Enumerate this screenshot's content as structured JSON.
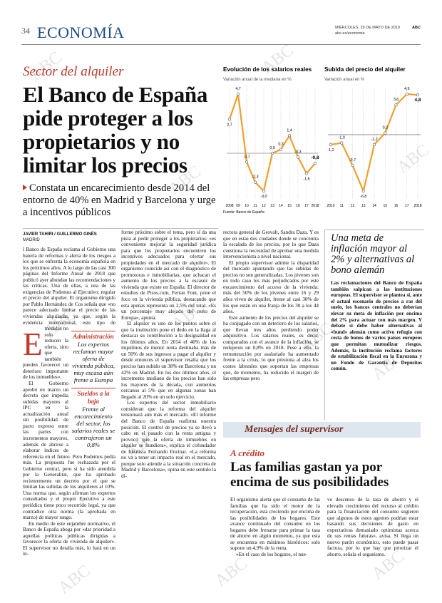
{
  "header": {
    "page_number": "34",
    "section": "ECONOMÍA",
    "date": "MIÉRCOLES, 29 DE MAYO DE 2019",
    "brand": "ABC",
    "url": "abc.es/economia"
  },
  "watermark": "ABC",
  "article": {
    "kicker": "Sector del alquiler",
    "headline": "El Banco de España pide proteger a los propietarios y no limitar los precios",
    "subhead": "Constata un encarecimiento desde 2014 del entorno de 40% en Madrid y Barcelona y urge a incentivos públicos",
    "byline": "JAVIER TAHIRI / GUILLERMO GINÉS",
    "location": "MADRID",
    "drop_cap": "E",
    "columns": [
      [
        "l Banco de España reclama al Gobierno una batería de reformas y alerta de los riesgos a los que se enfrenta la economía española en los próximos años. A lo largo de las casi 300 páginas del Informe Anual de 2018 que publicó ayer abundan las recomendaciones y las críticas. Una de ellas, a una de las exigencias de Podemos al Ejecutivo: regular el precio del alquiler. El organismo dirigido por Pablo Hernández de Cos señala que «no parece adecuado limitar el precio de las viviendas alquiladas, ya que, según la evidencia internacional, este tipo de medidas no solo reducen la oferta, sino que también pueden favorecer un deterioro importante de los inmuebles».",
        "El Gobierno aprobó en marzo un decreto que impedía subidas mayores al IPC en la actualización anual sin posibilidad de pacto expreso entre las partes con incrementos mayores, además de abrirse a elaborar índices de referencia en el futuro. Pero Podemos pedía más. La propuesta fue rechazada por el Gobierno central, pero sí ha sido atendida por la Generalitat, que ha aprobado recientemente un decreto por el que se limitan las subidas de los alquileres al 10%. Una norma que, según afirman los expertos consultados y el propio Ejecutivo a este periódico tiene poco recorrido legal, ya que contradice otra norma (la aprobada en marzo) de mayor rango.",
        "En medio de este enjambre normativo, el Banco de España aboga por «dar prioridad a aquellas políticas públicas dirigidas a favorecer la oferta de vivienda de alquiler». El supervisor no detalla más, lo hará en un in-"
      ],
      [
        "forme próximo sobre el tema, pero sí da una pista al pedir proteger a los propietarios: «es conveniente mejorar la seguridad jurídica para que los propietarios encuentren los incentivos adecuados para ofertar sus propiedades en el mercado de alquiler». El organismo coincide así con el diagnóstico de promotoras e inmobiliarias, que achacan el aumento de los precios a la escasez de vivienda que existe en España. El director de estudios de Pisos.com, Ferran Font, pone el foco en la vivienda pública, destacando que esta apenas representa un 2,5% del total. «Es un porcentaje muy alejado del resto de Europa», apunta.",
        "El alquiler es uno de los puntos sobre el que la institución pone el dedo en la llaga al destacar su contribución a la desigualdad en los últimos años. En 2014 el 40% de los inquilinos de menor renta destinaba más de un 50% de sus ingresos a pagar el alquiler y desde entonces el supervisor resalta que los precios han subido un 38% en Barcelona y un 42% en Madrid. En los dos últimos años, el incremento mediano de los precios han sido los mayores de la década, con aumentos cercanos al 5% que en algunas zonas han llegado al 20% en un solo ejercicio.",
        "Los expertos del sector inmobiliario consideran que la reforma del alquiler tensionará aún más el mercado. «El informe del Banco de España reafirma nuestra posición. El control de precios ya se llevó a cabo en el pasado con la renta antigua y provocó que la oferta de inmuebles en alquiler se hundiera», explica el cofundador de Idealista Fernando Encinar. «La reforma no va a tener un impacto real en el mercado, porque solo atiende a la situación concreta de Madrid y Barcelona», opina en este sentido la di-"
      ],
      [
        "rectora general de Gesvalt, Sandra Daza. Y es que en estas dos ciudades donde se concentra la escalada de los precios, por lo que Daza cuestiona la necesidad de aprobar una medida intervencionista a nivel nacional.",
        "El propio supervisor admite la disparidad del mercado apuntando que las subidas de precios no son generalizadas. Los jóvenes son en todo caso los más perjudicados por este encarecimiento del acceso de la vivienda: más del 50% de los jóvenes entre 16 y 29 años viven de alquiler, frente al casi 30% de los que están en una franja de los 30 a los 44 años.",
        "Este aumento de los precios del alquiler se ha conjugado con un deterioro de los salarios, que llevan tres años perdiendo poder adquisitivo. Los salarios reales, es decir, comparados con el avance de la inflación, se redujeron un 0,8% en 2018. Pese a ello, la remuneración por asalariado ha aumentado frente a la crisis, lo que presiona al alza los costes laborales que soportan las empresas que, de momento, ha reducido el margen de las empresas pero"
      ]
    ],
    "pull_quotes": [
      {
        "label": "Administración",
        "text": "Los expertos reclaman mayor oferta de vivienda pública, muy escasa aún frente a Europa"
      },
      {
        "label": "Sueldos a la baja",
        "text": "Frente al encarecimiento del sector, los salarios reales se contrajeron un 0,8%"
      }
    ]
  },
  "chart_data": [
    {
      "type": "line",
      "title": "Evolución de los salarios reales",
      "subtitle": "Variación anual de la mediana en %",
      "categories": [
        "2008",
        "09",
        "10",
        "11",
        "12",
        "13",
        "14",
        "15",
        "16",
        "17",
        "2018"
      ],
      "values": [
        2.7,
        4.7,
        -0.7,
        -2.3,
        -3.0,
        0.0,
        0.3,
        1.4,
        -0.3,
        -1.6,
        -0.8
      ],
      "value_labels": [
        "2,7",
        "4,7",
        "-0,7",
        "-2,3",
        "-3,0",
        "0,0",
        "0,3",
        "1,4",
        "-0,3",
        "-1,6",
        "-0,8"
      ],
      "color": "#f0a02a"
    },
    {
      "type": "line",
      "title": "Subida del precio del alquiler",
      "subtitle": "Variación anual en %",
      "categories": [
        "2010",
        "11",
        "12",
        "13",
        "14",
        "15",
        "16",
        "17",
        "2018"
      ],
      "values": [
        -1.2,
        -1.0,
        -3.7,
        -6.8,
        -1.2,
        0.2,
        3.6,
        4.9,
        4.8
      ],
      "value_labels": [
        "-1,2",
        "-1,0",
        "-3,7",
        "-6,8",
        "-1,2",
        "0,2",
        "3,6",
        "4,9",
        "4,8"
      ],
      "color": "#f0a02a"
    }
  ],
  "chart_source": "Fuente: Banco de España",
  "sidebar": {
    "headline": "Una meta de inflación mayor al 2% y alternativas al bono alemán",
    "text": "Las reclamaciones del Banco de España también salpican a las instituciones europeas. El supervisor se plantea si, ante el actual escenario de precios a ras del suelo, los bancos centrales no deberían elevar su meta de inflación por encima del 2% para actuar con más margen. Y debate si debe haber alternativas al «bund» alemán como activo refugio con cesta de bonos de varios países europeos que permitan mutualizar riesgos. Además, la institución reclama factores de estabilización fiscal en la Eurozona y un Fondo de Garantía de Depósitos común."
  },
  "credit_article": {
    "banner": "Mensajes del supervisor",
    "kicker": "A crédito",
    "headline": "Las familias gastan ya por encima de sus posibilidades",
    "columns": [
      [
        "El organismo alerta que el consumo de las familias que ha sido el motor de la recuperación, está creciendo por encima de las posibilidades de los hogares. Este avance continuado del consumo en los hogares debe frenarse para primar la tasa de ahorro en algún momento, ya que esta se encuentra en mínimos históricos: solo supone un 4,9% de la renta.",
        "»En el caso de los hogares, el nue-"
      ],
      [
        "vo descenso de la tasa de ahorro y el elevado crecimiento del recurso al crédito para la financiación del consumo sugieren que algunos de estos agentes podrían estar basando sus decisiones de gasto en expectativas demasiado optimistas acerca de sus rentas futuras», avisa. Si llega un nuevo parón económico, esto puede pasar factura, por lo que hay que priorizar el ahorro, señala el organismo."
      ]
    ]
  }
}
